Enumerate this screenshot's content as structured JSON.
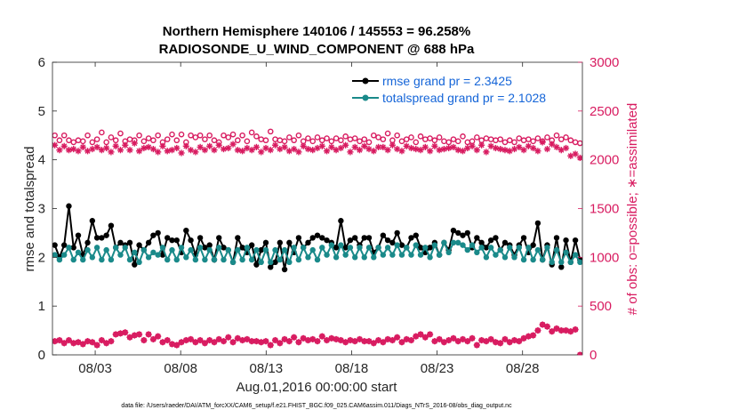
{
  "chart_data": {
    "type": "line",
    "title_line1": "Northern Hemisphere 140106 / 145553 = 96.258%",
    "title_line2": "RADIOSONDE_U_WIND_COMPONENT @ 688 hPa",
    "xlabel": "Aug.01,2016 00:00:00 start",
    "ylabel_left": "rmse and totalspread",
    "ylabel_right": "# of obs: o=possible; ∗=assimilated",
    "xlim": [
      0.5,
      31.5
    ],
    "ylim_left": [
      0,
      6
    ],
    "ylim_right": [
      0,
      3000
    ],
    "x_ticks": [
      {
        "x": 3,
        "label": "08/03"
      },
      {
        "x": 8,
        "label": "08/08"
      },
      {
        "x": 13,
        "label": "08/13"
      },
      {
        "x": 18,
        "label": "08/18"
      },
      {
        "x": 23,
        "label": "08/23"
      },
      {
        "x": 28,
        "label": "08/28"
      }
    ],
    "y_ticks_left": [
      {
        "v": 0,
        "label": "0"
      },
      {
        "v": 1,
        "label": "1"
      },
      {
        "v": 2,
        "label": "2"
      },
      {
        "v": 3,
        "label": "3"
      },
      {
        "v": 4,
        "label": "4"
      },
      {
        "v": 5,
        "label": "5"
      },
      {
        "v": 6,
        "label": "6"
      }
    ],
    "y_ticks_right": [
      {
        "v": 0,
        "label": "0"
      },
      {
        "v": 500,
        "label": "500"
      },
      {
        "v": 1000,
        "label": "1000"
      },
      {
        "v": 1500,
        "label": "1500"
      },
      {
        "v": 2000,
        "label": "2000"
      },
      {
        "v": 2500,
        "label": "2500"
      },
      {
        "v": 3000,
        "label": "3000"
      }
    ],
    "series": [
      {
        "name": "rmse grand pr = 2.3425",
        "color": "#000000",
        "axis": "left",
        "values": [
          2.25,
          2.0,
          2.25,
          3.05,
          2.2,
          2.45,
          2.05,
          2.3,
          2.75,
          2.4,
          2.4,
          2.45,
          2.65,
          2.2,
          2.3,
          2.25,
          2.3,
          1.85,
          2.25,
          2.15,
          2.3,
          2.45,
          2.5,
          2.05,
          2.4,
          2.35,
          2.35,
          2.1,
          2.55,
          2.35,
          2.05,
          2.4,
          2.2,
          2.25,
          1.95,
          2.4,
          2.2,
          2.15,
          1.9,
          2.4,
          2.2,
          2.1,
          2.25,
          1.85,
          2.15,
          2.3,
          1.8,
          1.9,
          2.3,
          1.75,
          2.3,
          2.1,
          2.4,
          2.2,
          2.3,
          2.4,
          2.45,
          2.4,
          2.35,
          2.3,
          2.2,
          2.75,
          2.2,
          2.35,
          2.4,
          2.25,
          2.4,
          2.4,
          2.1,
          2.2,
          2.45,
          2.35,
          2.3,
          2.5,
          2.25,
          2.2,
          2.4,
          2.45,
          2.2,
          2.1,
          2.2,
          2.3,
          2.05,
          2.3,
          2.15,
          2.55,
          2.5,
          2.45,
          2.5,
          2.2,
          2.4,
          2.3,
          2.2,
          2.35,
          2.4,
          2.15,
          2.3,
          2.25,
          2.05,
          2.25,
          2.4,
          2.1,
          2.25,
          2.7,
          1.95,
          2.25,
          1.85,
          2.4,
          1.8,
          2.35,
          1.9,
          2.35,
          1.95
        ]
      },
      {
        "name": "totalspread grand pr = 2.1028",
        "color": "#1a8a8a",
        "axis": "left",
        "values": [
          2.05,
          1.95,
          2.05,
          2.2,
          1.95,
          2.1,
          1.95,
          2.15,
          2.0,
          2.2,
          1.95,
          2.15,
          1.95,
          2.2,
          2.05,
          2.2,
          1.95,
          2.1,
          1.9,
          2.15,
          2.0,
          2.1,
          2.05,
          2.2,
          1.95,
          2.15,
          1.95,
          2.2,
          2.0,
          2.15,
          1.95,
          2.2,
          1.95,
          2.15,
          1.95,
          2.2,
          1.95,
          2.15,
          1.9,
          2.15,
          1.95,
          2.2,
          1.95,
          2.15,
          1.9,
          2.15,
          1.9,
          2.15,
          1.95,
          2.15,
          1.9,
          2.2,
          1.95,
          2.2,
          2.0,
          2.15,
          1.95,
          2.2,
          2.05,
          2.25,
          2.0,
          2.25,
          2.05,
          2.2,
          2.0,
          2.2,
          2.0,
          2.2,
          2.0,
          2.2,
          2.05,
          2.2,
          2.05,
          2.25,
          2.05,
          2.2,
          2.05,
          2.25,
          2.05,
          2.2,
          2.0,
          2.25,
          2.05,
          2.3,
          2.1,
          2.3,
          2.3,
          2.25,
          2.15,
          2.25,
          2.1,
          2.2,
          2.0,
          2.2,
          2.05,
          2.15,
          2.0,
          2.2,
          2.0,
          2.2,
          1.95,
          2.2,
          1.95,
          2.15,
          1.95,
          2.2,
          1.9,
          2.15,
          1.9,
          2.1,
          1.9,
          2.05,
          1.9
        ]
      },
      {
        "name": "possible",
        "color": "#d81b60",
        "axis": "right",
        "marker": "o",
        "values": [
          2250,
          2200,
          2250,
          2200,
          2180,
          2200,
          2190,
          2250,
          2180,
          2210,
          2280,
          2180,
          2230,
          2200,
          2270,
          2190,
          2210,
          2200,
          2250,
          2190,
          2220,
          2200,
          2250,
          2180,
          2210,
          2260,
          2200,
          2260,
          2180,
          2250,
          2230,
          2250,
          2210,
          2250,
          2200,
          2180,
          2250,
          2230,
          2260,
          2200,
          2250,
          2190,
          2280,
          2240,
          2210,
          2200,
          2290,
          2210,
          2200,
          2190,
          2230,
          2200,
          2250,
          2190,
          2220,
          2190,
          2230,
          2200,
          2220,
          2190,
          2220,
          2200,
          2240,
          2210,
          2220,
          2190,
          2210,
          2180,
          2250,
          2230,
          2210,
          2270,
          2200,
          2250,
          2190,
          2210,
          2230,
          2180,
          2240,
          2210,
          2220,
          2200,
          2230,
          2190,
          2180,
          2210,
          2190,
          2240,
          2180,
          2190,
          2230,
          2200,
          2220,
          2210,
          2200,
          2210,
          2180,
          2200,
          2180,
          2220,
          2200,
          2210,
          2190,
          2220,
          2190,
          2230,
          2200,
          2250,
          2210,
          2230,
          2200,
          2180,
          2170
        ]
      },
      {
        "name": "assimilated",
        "color": "#d81b60",
        "axis": "right",
        "marker": "*",
        "values": [
          2150,
          2100,
          2140,
          2100,
          2110,
          2090,
          2130,
          2090,
          2110,
          2130,
          2100,
          2120,
          2080,
          2140,
          2100,
          2150,
          2100,
          2170,
          2090,
          2120,
          2130,
          2110,
          2080,
          2140,
          2090,
          2100,
          2120,
          2070,
          2140,
          2100,
          2080,
          2130,
          2100,
          2140,
          2100,
          2150,
          2110,
          2120,
          2160,
          2100,
          2090,
          2120,
          2100,
          2130,
          2080,
          2120,
          2100,
          2150,
          2110,
          2130,
          2090,
          2110,
          2080,
          2140,
          2110,
          2100,
          2120,
          2140,
          2090,
          2130,
          2100,
          2120,
          2150,
          2080,
          2130,
          2100,
          2140,
          2110,
          2090,
          2130,
          2130,
          2100,
          2150,
          2110,
          2090,
          2140,
          2120,
          2110,
          2100,
          2130,
          2090,
          2140,
          2100,
          2110,
          2120,
          2130,
          2100,
          2090,
          2120,
          2140,
          2100,
          2150,
          2080,
          2140,
          2120,
          2110,
          2100,
          2090,
          2110,
          2130,
          2100,
          2140,
          2120,
          2090,
          2180,
          2110,
          2160,
          2130,
          2100,
          2120,
          2040,
          2060,
          2020
        ]
      },
      {
        "name": "bottom_possible",
        "color": "#d81b60",
        "axis": "right",
        "marker": "o",
        "values": [
          140,
          150,
          120,
          150,
          120,
          130,
          110,
          140,
          130,
          100,
          150,
          120,
          140,
          210,
          220,
          230,
          180,
          200,
          210,
          150,
          210,
          160,
          190,
          130,
          150,
          110,
          100,
          130,
          150,
          160,
          130,
          150,
          120,
          150,
          130,
          160,
          140,
          180,
          130,
          170,
          150,
          160,
          140,
          140,
          130,
          140,
          100,
          150,
          120,
          160,
          140,
          180,
          130,
          170,
          150,
          160,
          140,
          190,
          150,
          170,
          160,
          150,
          130,
          150,
          140,
          160,
          140,
          140,
          120,
          150,
          130,
          160,
          150,
          180,
          130,
          160,
          150,
          190,
          210,
          180,
          210,
          140,
          160,
          130,
          150,
          170,
          140,
          160,
          140,
          170,
          100,
          150,
          140,
          160,
          130,
          120,
          160,
          130,
          150,
          140,
          170,
          190,
          200,
          250,
          310,
          290,
          240,
          270,
          250,
          250,
          240,
          260,
          0
        ]
      },
      {
        "name": "bottom_assimilated",
        "color": "#d81b60",
        "axis": "right",
        "marker": "*",
        "values": [
          140,
          150,
          120,
          150,
          120,
          130,
          110,
          140,
          130,
          100,
          150,
          120,
          140,
          210,
          220,
          230,
          180,
          200,
          210,
          150,
          210,
          160,
          190,
          130,
          150,
          110,
          100,
          130,
          150,
          160,
          130,
          150,
          120,
          150,
          130,
          160,
          140,
          180,
          130,
          170,
          150,
          160,
          140,
          140,
          130,
          140,
          100,
          150,
          120,
          160,
          140,
          180,
          130,
          170,
          150,
          160,
          140,
          190,
          150,
          170,
          160,
          150,
          130,
          150,
          140,
          160,
          140,
          140,
          120,
          150,
          130,
          160,
          150,
          180,
          130,
          160,
          150,
          190,
          210,
          180,
          210,
          140,
          160,
          130,
          150,
          170,
          140,
          160,
          140,
          170,
          100,
          150,
          140,
          160,
          130,
          120,
          160,
          130,
          150,
          140,
          170,
          190,
          200,
          250,
          310,
          290,
          240,
          270,
          250,
          250,
          240,
          260,
          0
        ]
      }
    ],
    "legend": [
      {
        "label": "rmse grand pr = 2.3425",
        "color": "#000000"
      },
      {
        "label": "totalspread grand pr = 2.1028",
        "color": "#1a8a8a"
      }
    ],
    "legend_text_color": "#1565d8",
    "right_axis_color": "#d81b60",
    "footer": "data file: /Users/raeder/DAI/ATM_forcXX/CAM6_setup/f.e21.FHIST_BGC.f09_025.CAM6assim.011/Diags_NTrS_2016-08/obs_diag_output.nc"
  }
}
